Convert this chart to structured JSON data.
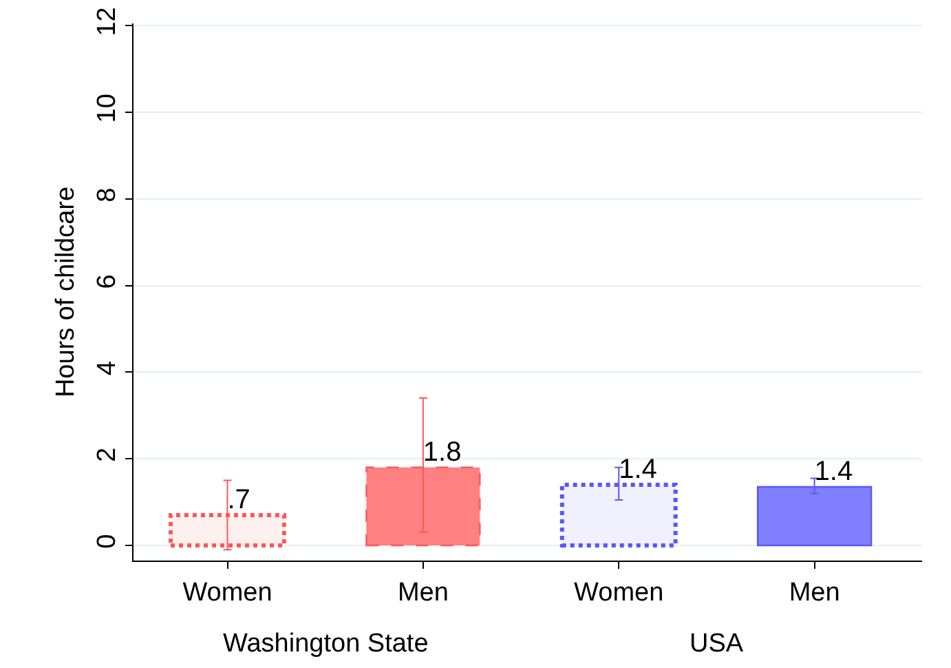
{
  "chart_data": {
    "type": "bar",
    "ylabel": "Hours of childcare",
    "categories": [
      "Women",
      "Men",
      "Women",
      "Men"
    ],
    "series": [
      {
        "color": "#fff0f0",
        "line_style": "dotted",
        "values": [
          0.7,
          null,
          null,
          null
        ],
        "errors": [
          [
            -0.1,
            1.5
          ],
          null,
          null,
          null
        ],
        "value_labels": [
          ".7",
          null,
          null,
          null
        ]
      },
      {
        "color": "#ff8080",
        "line_style": "dashed",
        "values": [
          null,
          1.8,
          null,
          null
        ],
        "errors": [
          null,
          [
            0.3,
            3.4
          ],
          null,
          null
        ],
        "value_labels": [
          null,
          "1.8",
          null,
          null
        ]
      },
      {
        "color": "#f0f0ff",
        "line_style": "dotted",
        "values": [
          null,
          null,
          1.4,
          null
        ],
        "errors": [
          null,
          null,
          [
            1.05,
            1.8
          ],
          null
        ],
        "value_labels": [
          null,
          null,
          "1.4",
          null
        ]
      },
      {
        "color": "#8080ff",
        "line_style": "solid",
        "values": [
          null,
          null,
          null,
          1.35
        ],
        "errors": [
          null,
          null,
          null,
          [
            1.2,
            1.55
          ]
        ],
        "value_labels": [
          null,
          null,
          null,
          "1.4"
        ]
      }
    ],
    "ylim": [
      -0.35,
      12.05
    ],
    "yticks": [
      0,
      2,
      4,
      6,
      8,
      10,
      12
    ],
    "grid": "y",
    "annotations": [
      "Washington State",
      "USA"
    ]
  }
}
